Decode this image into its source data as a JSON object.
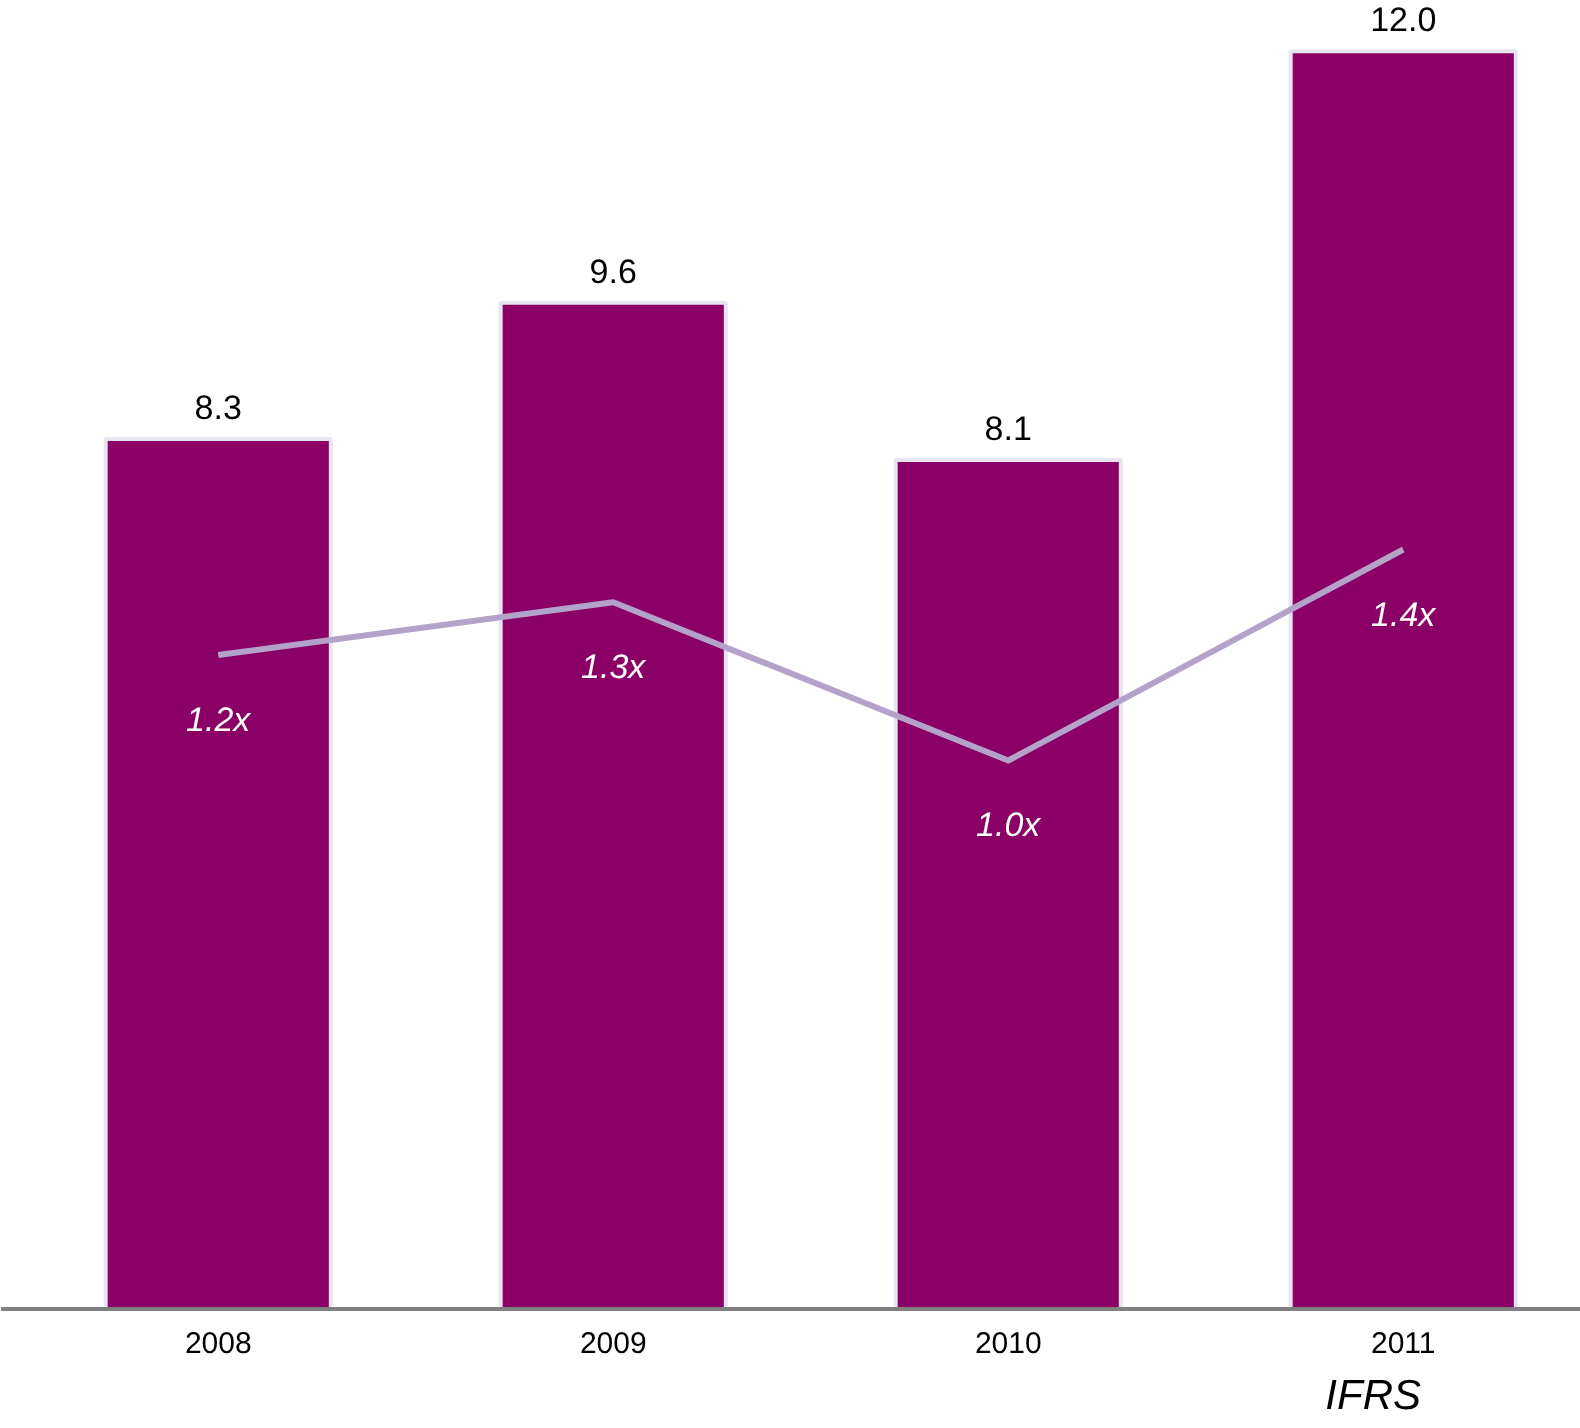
{
  "chart_data": {
    "type": "bar",
    "categories": [
      "2008",
      "2009",
      "2010",
      "2011"
    ],
    "series": [
      {
        "color": "#8b0066",
        "values": [
          8.3,
          9.6,
          8.1,
          12.0
        ],
        "value_labels": [
          "8.3",
          "9.6",
          "8.1",
          "12.0"
        ]
      },
      {
        "type": "line",
        "axis": "y2",
        "color": "#b3a2c9",
        "values": [
          1.2,
          1.3,
          1.0,
          1.4
        ],
        "value_labels": [
          "1.2x",
          "1.3x",
          "1.0x",
          "1.4x"
        ]
      }
    ],
    "tick_labels": "x",
    "grid": false,
    "annotations": [
      "IFRS"
    ]
  }
}
